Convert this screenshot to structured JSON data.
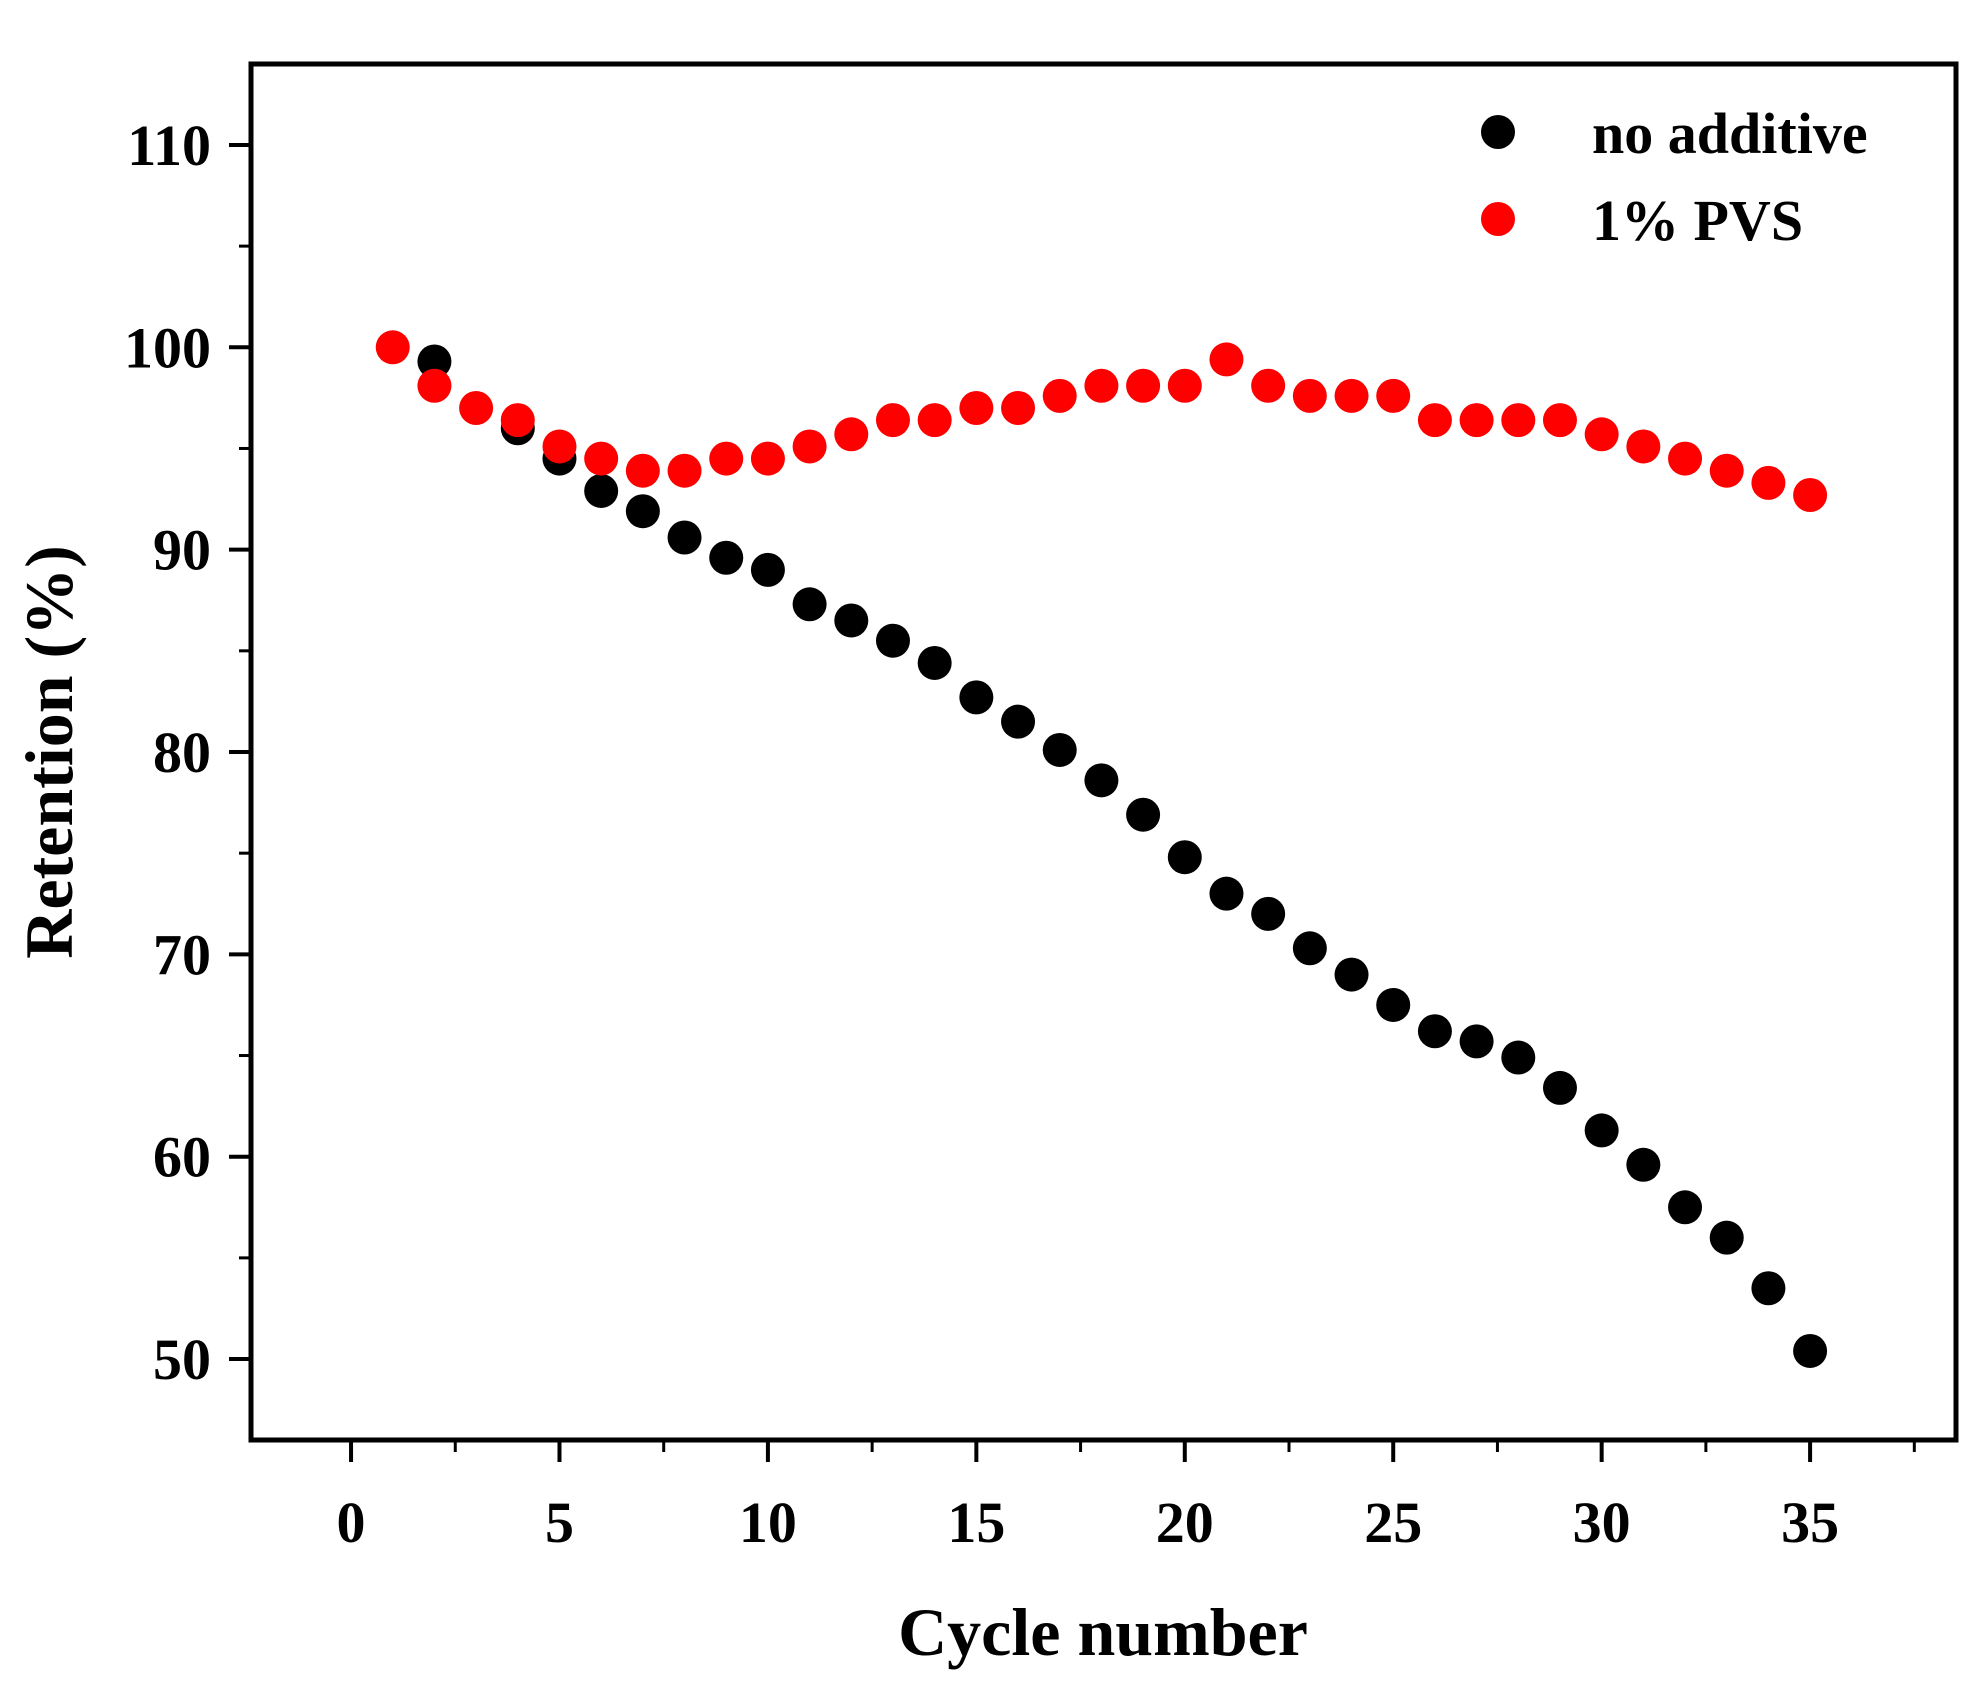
{
  "chart_data": {
    "type": "scatter",
    "title": "",
    "xlabel": "Cycle number",
    "ylabel": "Retention (%)",
    "xlim": [
      -2.4,
      38.5
    ],
    "ylim": [
      46,
      114
    ],
    "x_ticks": [
      0,
      5,
      10,
      15,
      20,
      25,
      30,
      35
    ],
    "x_tick_labels": [
      "0",
      "5",
      "10",
      "15",
      "20",
      "25",
      "30",
      "35"
    ],
    "y_ticks": [
      50,
      60,
      70,
      80,
      90,
      100,
      110
    ],
    "y_tick_labels": [
      "50",
      "60",
      "70",
      "80",
      "90",
      "100",
      "110"
    ],
    "grid": false,
    "legend_position": "top-right",
    "series": [
      {
        "name": "no additive",
        "color": "#000000",
        "x": [
          2,
          4,
          5,
          6,
          7,
          8,
          9,
          10,
          11,
          12,
          13,
          14,
          15,
          16,
          17,
          18,
          19,
          20,
          21,
          22,
          23,
          24,
          25,
          26,
          27,
          28,
          29,
          30,
          31,
          32,
          33,
          34,
          35
        ],
        "values": [
          99.3,
          96.0,
          94.5,
          92.9,
          91.9,
          90.6,
          89.6,
          89.0,
          87.3,
          86.5,
          85.5,
          84.4,
          82.7,
          81.5,
          80.1,
          78.6,
          76.9,
          74.8,
          73.0,
          72.0,
          70.3,
          69.0,
          67.5,
          66.2,
          65.7,
          64.9,
          63.4,
          61.3,
          59.6,
          57.5,
          56.0,
          53.5,
          50.4
        ]
      },
      {
        "name": "1% PVS",
        "color": "#ff0000",
        "x": [
          1,
          2,
          3,
          4,
          5,
          6,
          7,
          8,
          9,
          10,
          11,
          12,
          13,
          14,
          15,
          16,
          17,
          18,
          19,
          20,
          21,
          22,
          23,
          24,
          25,
          26,
          27,
          28,
          29,
          30,
          31,
          32,
          33,
          34,
          35
        ],
        "values": [
          100.0,
          98.1,
          97.0,
          96.4,
          95.1,
          94.5,
          93.9,
          93.9,
          94.5,
          94.5,
          95.1,
          95.7,
          96.4,
          96.4,
          97.0,
          97.0,
          97.6,
          98.1,
          98.1,
          98.1,
          99.4,
          98.1,
          97.6,
          97.6,
          97.6,
          96.4,
          96.4,
          96.4,
          96.4,
          95.7,
          95.1,
          94.5,
          93.9,
          93.3,
          92.7
        ]
      }
    ]
  }
}
